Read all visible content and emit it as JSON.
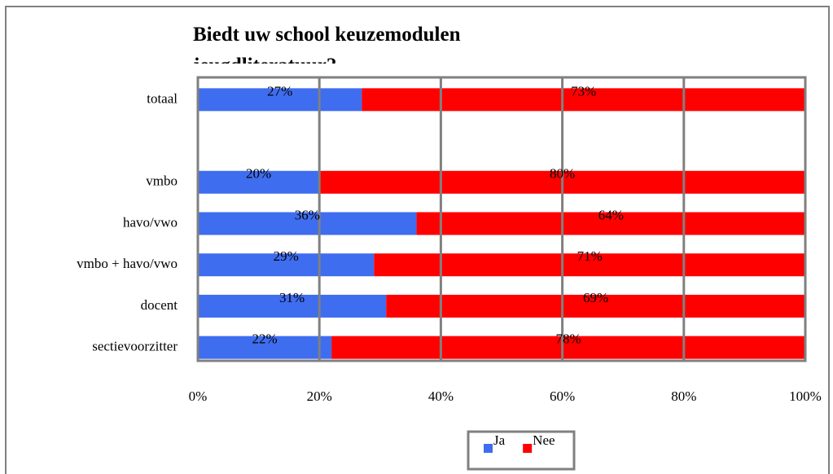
{
  "chart_data": {
    "type": "stacked_barh",
    "title": "Biedt uw school keuzemodulen jeugdliteratuur?",
    "categories": [
      "totaal",
      null,
      "vmbo",
      "havo/vwo",
      "vmbo + havo/vwo",
      "docent",
      "sectievoorzitter"
    ],
    "series": [
      {
        "name": "Ja",
        "color": "#3f6df0",
        "values": [
          27,
          null,
          20,
          36,
          29,
          31,
          22
        ],
        "value_labels": [
          "27%",
          null,
          "20%",
          "36%",
          "29%",
          "31%",
          "22%"
        ]
      },
      {
        "name": "Nee",
        "color": "#ff0000",
        "values": [
          73,
          null,
          80,
          64,
          71,
          69,
          78
        ],
        "value_labels": [
          "73%",
          null,
          "80%",
          "64%",
          "71%",
          "69%",
          "78%"
        ]
      }
    ],
    "xlim": [
      0,
      100
    ],
    "xticks": [
      {
        "value": 0,
        "label": "0%"
      },
      {
        "value": 20,
        "label": "20%"
      },
      {
        "value": 40,
        "label": "40%"
      },
      {
        "value": 60,
        "label": "60%"
      },
      {
        "value": 80,
        "label": "80%"
      },
      {
        "value": 100,
        "label": "100%"
      }
    ],
    "grid": true,
    "legend": "bottom"
  }
}
